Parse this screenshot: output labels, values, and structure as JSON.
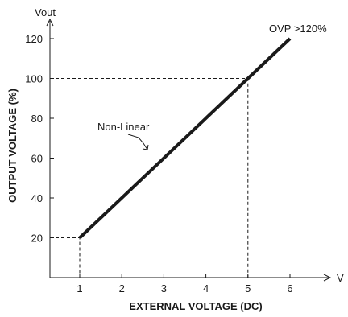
{
  "chart_data": {
    "type": "line",
    "y_axis_symbol": "Vout",
    "x_axis_symbol": "V",
    "ylabel": "OUTPUT VOLTAGE (%)",
    "xlabel": "EXTERNAL VOLTAGE (DC)",
    "x_ticks": [
      "1",
      "2",
      "3",
      "4",
      "5",
      "6"
    ],
    "y_ticks": [
      "20",
      "40",
      "60",
      "80",
      "100",
      "120"
    ],
    "xlim": [
      0.3,
      6.5
    ],
    "ylim": [
      0,
      130
    ],
    "series": [
      {
        "x": [
          1,
          5,
          6
        ],
        "y": [
          20,
          100,
          120
        ]
      }
    ],
    "reference_points": [
      {
        "x": 1,
        "y": 20
      },
      {
        "x": 5,
        "y": 100
      }
    ],
    "annotations": {
      "curve_note": "Non-Linear",
      "ovp_note": "OVP >120%"
    },
    "grid": false,
    "colors": {
      "line": "#1a1a1a",
      "axis": "#1a1a1a",
      "guide": "#1a1a1a"
    }
  }
}
